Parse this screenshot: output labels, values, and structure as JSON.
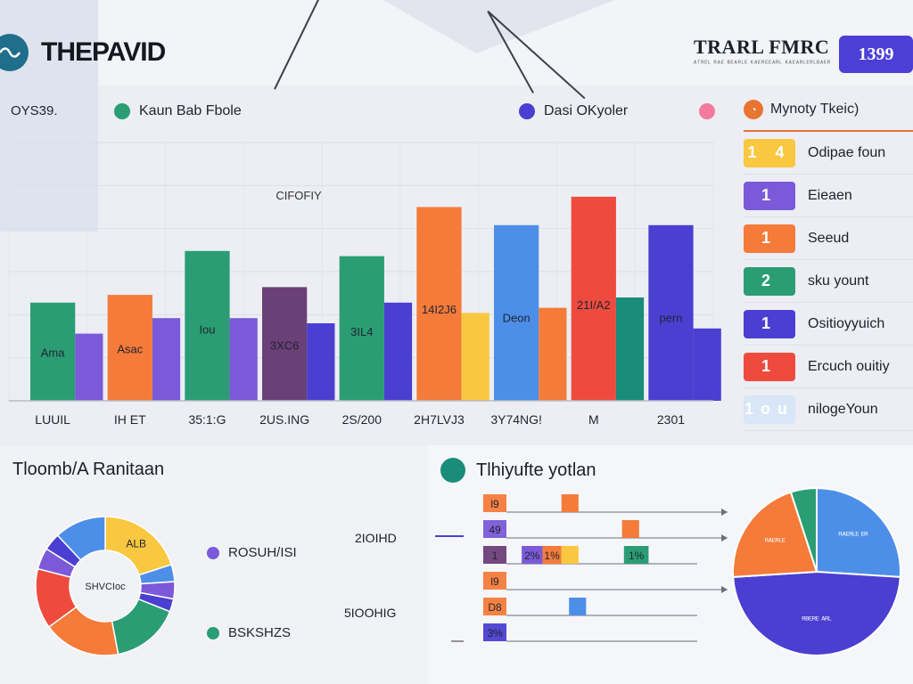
{
  "header": {
    "brand_title": "THEPAVID",
    "right_title": "TRARL FMRC",
    "right_subtitle": "ᴬᵀᴿᴱᴸ ᴿᴬᴱ ᴮᴱᴬᴿᴸᴱ ᴷᴬᴱᴿᴱᴱᴬᴿᴸ ᴷᴬᴱᴬᴿᴸᴱᴿᴸᴮᴬᴱᴿ",
    "badge_text": "1399"
  },
  "legend": {
    "left_label": "OYS39.",
    "series_a": "Kaun  Bab Fbole",
    "series_b": "Dasi OKyoler"
  },
  "colors": {
    "teal": "#2a9d74",
    "purple": "#7a5ad8",
    "orange": "#f47b3a",
    "plum": "#6b3f78",
    "indigo": "#4a3fd1",
    "yellow": "#f9c740",
    "blue": "#4d8fe8",
    "red": "#ee4b3e",
    "darkteal": "#1a8c7a",
    "pink": "#f27a9c"
  },
  "chart_data": [
    {
      "type": "bar",
      "categories": [
        "LUUIL",
        "IH ET",
        "35:1:G",
        "2US.ING",
        "2S/200",
        "2H7LVJ3",
        "3Y74NG!",
        "M",
        "2301"
      ],
      "ylim": [
        0,
        100
      ],
      "grid": true,
      "annotation": "CIFOFIY",
      "series": [
        {
          "values": [
            38,
            41,
            58,
            44,
            56,
            75,
            68,
            79,
            68
          ],
          "colors": [
            "#2a9d74",
            "#f47b3a",
            "#2a9d74",
            "#6b3f78",
            "#2a9d74",
            "#f47b3a",
            "#4d8fe8",
            "#ee4b3e",
            "#4a3fd1"
          ],
          "labels": [
            "Ama",
            "Asac",
            "Iou",
            "3XC6",
            "3IL4",
            "14I2J6",
            "Deon",
            "21I/A2",
            "pern"
          ]
        },
        {
          "values": [
            26,
            32,
            32,
            30,
            38,
            34,
            36,
            40,
            28
          ],
          "colors": [
            "#7a5ad8",
            "#7a5ad8",
            "#7a5ad8",
            "#4a3fd1",
            "#4a3fd1",
            "#f9c740",
            "#f47b3a",
            "#1a8c7a",
            "#4a3fd1"
          ]
        }
      ]
    },
    {
      "type": "pie",
      "title": "Tloomb/A Ranitaan",
      "center_label": "SHVCIoc",
      "slices": [
        {
          "label": "ALB",
          "value": 20,
          "color": "#f9c740"
        },
        {
          "label": "",
          "value": 4,
          "color": "#4d8fe8"
        },
        {
          "label": "",
          "value": 4,
          "color": "#7a5ad8"
        },
        {
          "label": "",
          "value": 3,
          "color": "#4a3fd1"
        },
        {
          "label": "",
          "value": 16,
          "color": "#2a9d74"
        },
        {
          "label": "",
          "value": 18,
          "color": "#f47b3a"
        },
        {
          "label": "",
          "value": 14,
          "color": "#ee4b3e"
        },
        {
          "label": "",
          "value": 5,
          "color": "#7a5ad8"
        },
        {
          "label": "",
          "value": 4,
          "color": "#4a3fd1"
        },
        {
          "label": "",
          "value": 12,
          "color": "#4d8fe8"
        }
      ],
      "legend": [
        {
          "label": "ROSUH/ISI",
          "value": "2IOIHD",
          "color": "#7a5ad8"
        },
        {
          "label": "BSKSHZS",
          "value": "5IOOHIG",
          "color": "#2a9d74"
        }
      ]
    },
    {
      "type": "bar",
      "title": "Tlhiyufte yotlan",
      "rows": [
        {
          "tag": "l9",
          "tag_color": "#f47b3a",
          "bars": [
            {
              "start": 30,
              "end": 39,
              "color": "#f47b3a"
            }
          ],
          "arrow": true
        },
        {
          "tag": "49",
          "tag_color": "#7a5ad8",
          "bars": [
            {
              "start": 62,
              "end": 71,
              "color": "#f47b3a"
            }
          ],
          "arrow": true
        },
        {
          "tag": "1",
          "tag_color": "#6b3f78",
          "bars": [
            {
              "start": 9,
              "end": 20,
              "color": "#7a5ad8",
              "label": "2%"
            },
            {
              "start": 20,
              "end": 30,
              "color": "#f47b3a",
              "label": "1%"
            },
            {
              "start": 30,
              "end": 39,
              "color": "#f9c740"
            },
            {
              "start": 63,
              "end": 76,
              "color": "#2a9d74",
              "label": "1%"
            }
          ]
        },
        {
          "tag": "l9",
          "tag_color": "#f47b3a",
          "bars": [],
          "arrow": true
        },
        {
          "tag": "D8",
          "tag_color": "#f47b3a",
          "bars": [
            {
              "start": 34,
              "end": 43,
              "color": "#4d8fe8"
            }
          ]
        },
        {
          "tag": "3%",
          "tag_color": "#4a3fd1",
          "bars": []
        }
      ],
      "xlim": [
        0,
        100
      ]
    },
    {
      "type": "pie",
      "slices": [
        {
          "label": "ᴿᴬᴱᴿᴸᴱ ᴱᴿ",
          "value": 26,
          "color": "#4d8fe8"
        },
        {
          "label": "ᴿᴮᴱᴿᴱ ᴬᴿᴸ",
          "value": 48,
          "color": "#4a3fd1"
        },
        {
          "label": "ᴿᴬᴱᴿᴸᴱ",
          "value": 21,
          "color": "#f47b3a"
        },
        {
          "label": "",
          "value": 5,
          "color": "#2a9d74"
        }
      ]
    }
  ],
  "side_panel": {
    "title": "Mynoty Tkeic)",
    "items": [
      {
        "num": "1 4",
        "label": "Odipae foun",
        "color": "#f9c740"
      },
      {
        "num": "1",
        "label": "Eieaen",
        "color": "#7a5ad8"
      },
      {
        "num": "1",
        "label": "Seeud",
        "color": "#f47b3a"
      },
      {
        "num": "2",
        "label": "sku yount",
        "color": "#2a9d74"
      },
      {
        "num": "1",
        "label": "Ositioyyuich",
        "color": "#4a3fd1"
      },
      {
        "num": "1",
        "label": "Ercuch ouitiy",
        "color": "#ee4b3e"
      },
      {
        "num": "1ou",
        "label": "nilogeYoun",
        "color": "#d8e6f7"
      }
    ]
  }
}
